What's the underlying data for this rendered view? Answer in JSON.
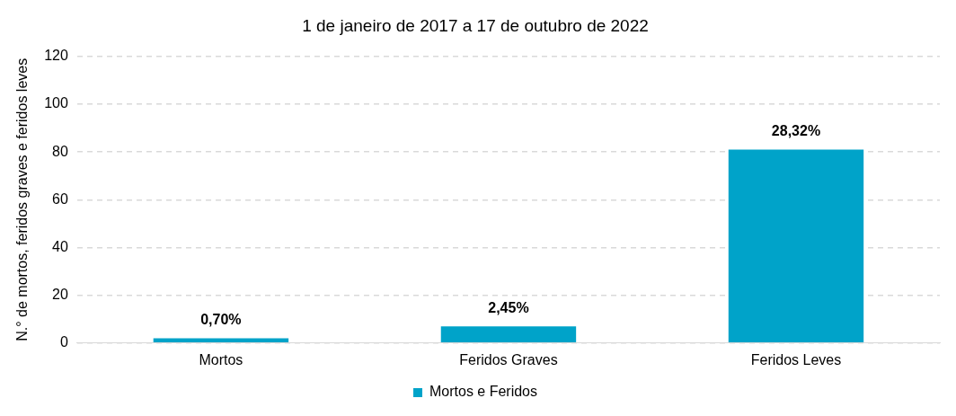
{
  "chart_data": {
    "type": "bar",
    "title": "1 de janeiro de 2017 a 17 de outubro de 2022",
    "ylabel": "N.° de mortos, feridos graves e feridos leves",
    "categories": [
      "Mortos",
      "Feridos Graves",
      "Feridos Leves"
    ],
    "series": [
      {
        "name": "Mortos e Feridos",
        "color": "#00a3c9",
        "values": [
          2,
          7,
          81
        ]
      }
    ],
    "annotations": [
      {
        "text": "0,70%",
        "x": "Mortos",
        "y": 2
      },
      {
        "text": "2,45%",
        "x": "Feridos Graves",
        "y": 7
      },
      {
        "text": "28,32%",
        "x": "Feridos Leves",
        "y": 81
      }
    ],
    "ylim": [
      0,
      120
    ],
    "yticks": [
      0,
      20,
      40,
      60,
      80,
      100,
      120
    ],
    "grid": "y",
    "legend": "bottom"
  }
}
